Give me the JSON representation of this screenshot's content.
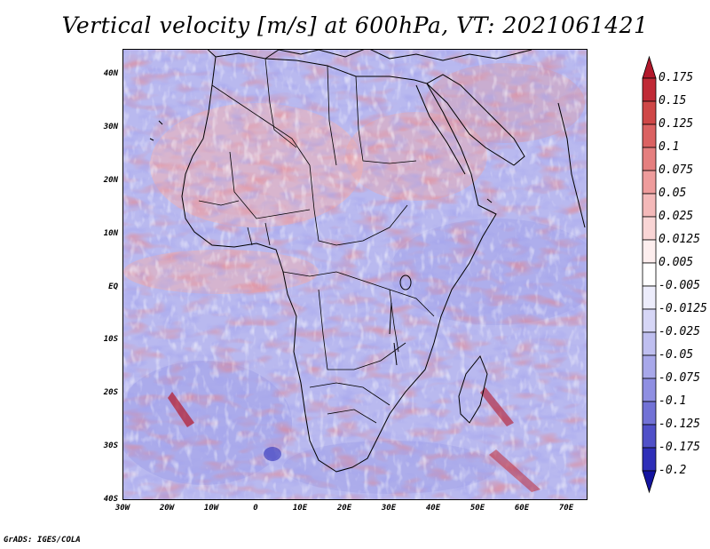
{
  "title": "Vertical velocity [m/s] at 600hPa, VT: 2021061421",
  "credit": "GrADS: IGES/COLA",
  "map": {
    "lat_labels": [
      "40N",
      "30N",
      "20N",
      "10N",
      "EQ",
      "10S",
      "20S",
      "30S",
      "40S"
    ],
    "lon_labels": [
      "30W",
      "20W",
      "10W",
      "0",
      "10E",
      "20E",
      "30E",
      "40E",
      "50E",
      "60E",
      "70E"
    ]
  },
  "colorbar": {
    "labels": [
      "0.175",
      "0.15",
      "0.125",
      "0.1",
      "0.075",
      "0.05",
      "0.025",
      "0.0125",
      "0.005",
      "-0.005",
      "-0.0125",
      "-0.025",
      "-0.05",
      "-0.075",
      "-0.1",
      "-0.125",
      "-0.175",
      "-0.2"
    ],
    "colors": [
      "#b2182b",
      "#c02a36",
      "#cf4747",
      "#db6262",
      "#e57f7f",
      "#ee9c9c",
      "#f4b9b9",
      "#f9d5d5",
      "#fdeeee",
      "#ffffff",
      "#ececfb",
      "#d6d6f6",
      "#bfbff0",
      "#a8a8ea",
      "#8f8fe2",
      "#7272d6",
      "#5050c8",
      "#2f2fb8",
      "#1414a0"
    ]
  }
}
